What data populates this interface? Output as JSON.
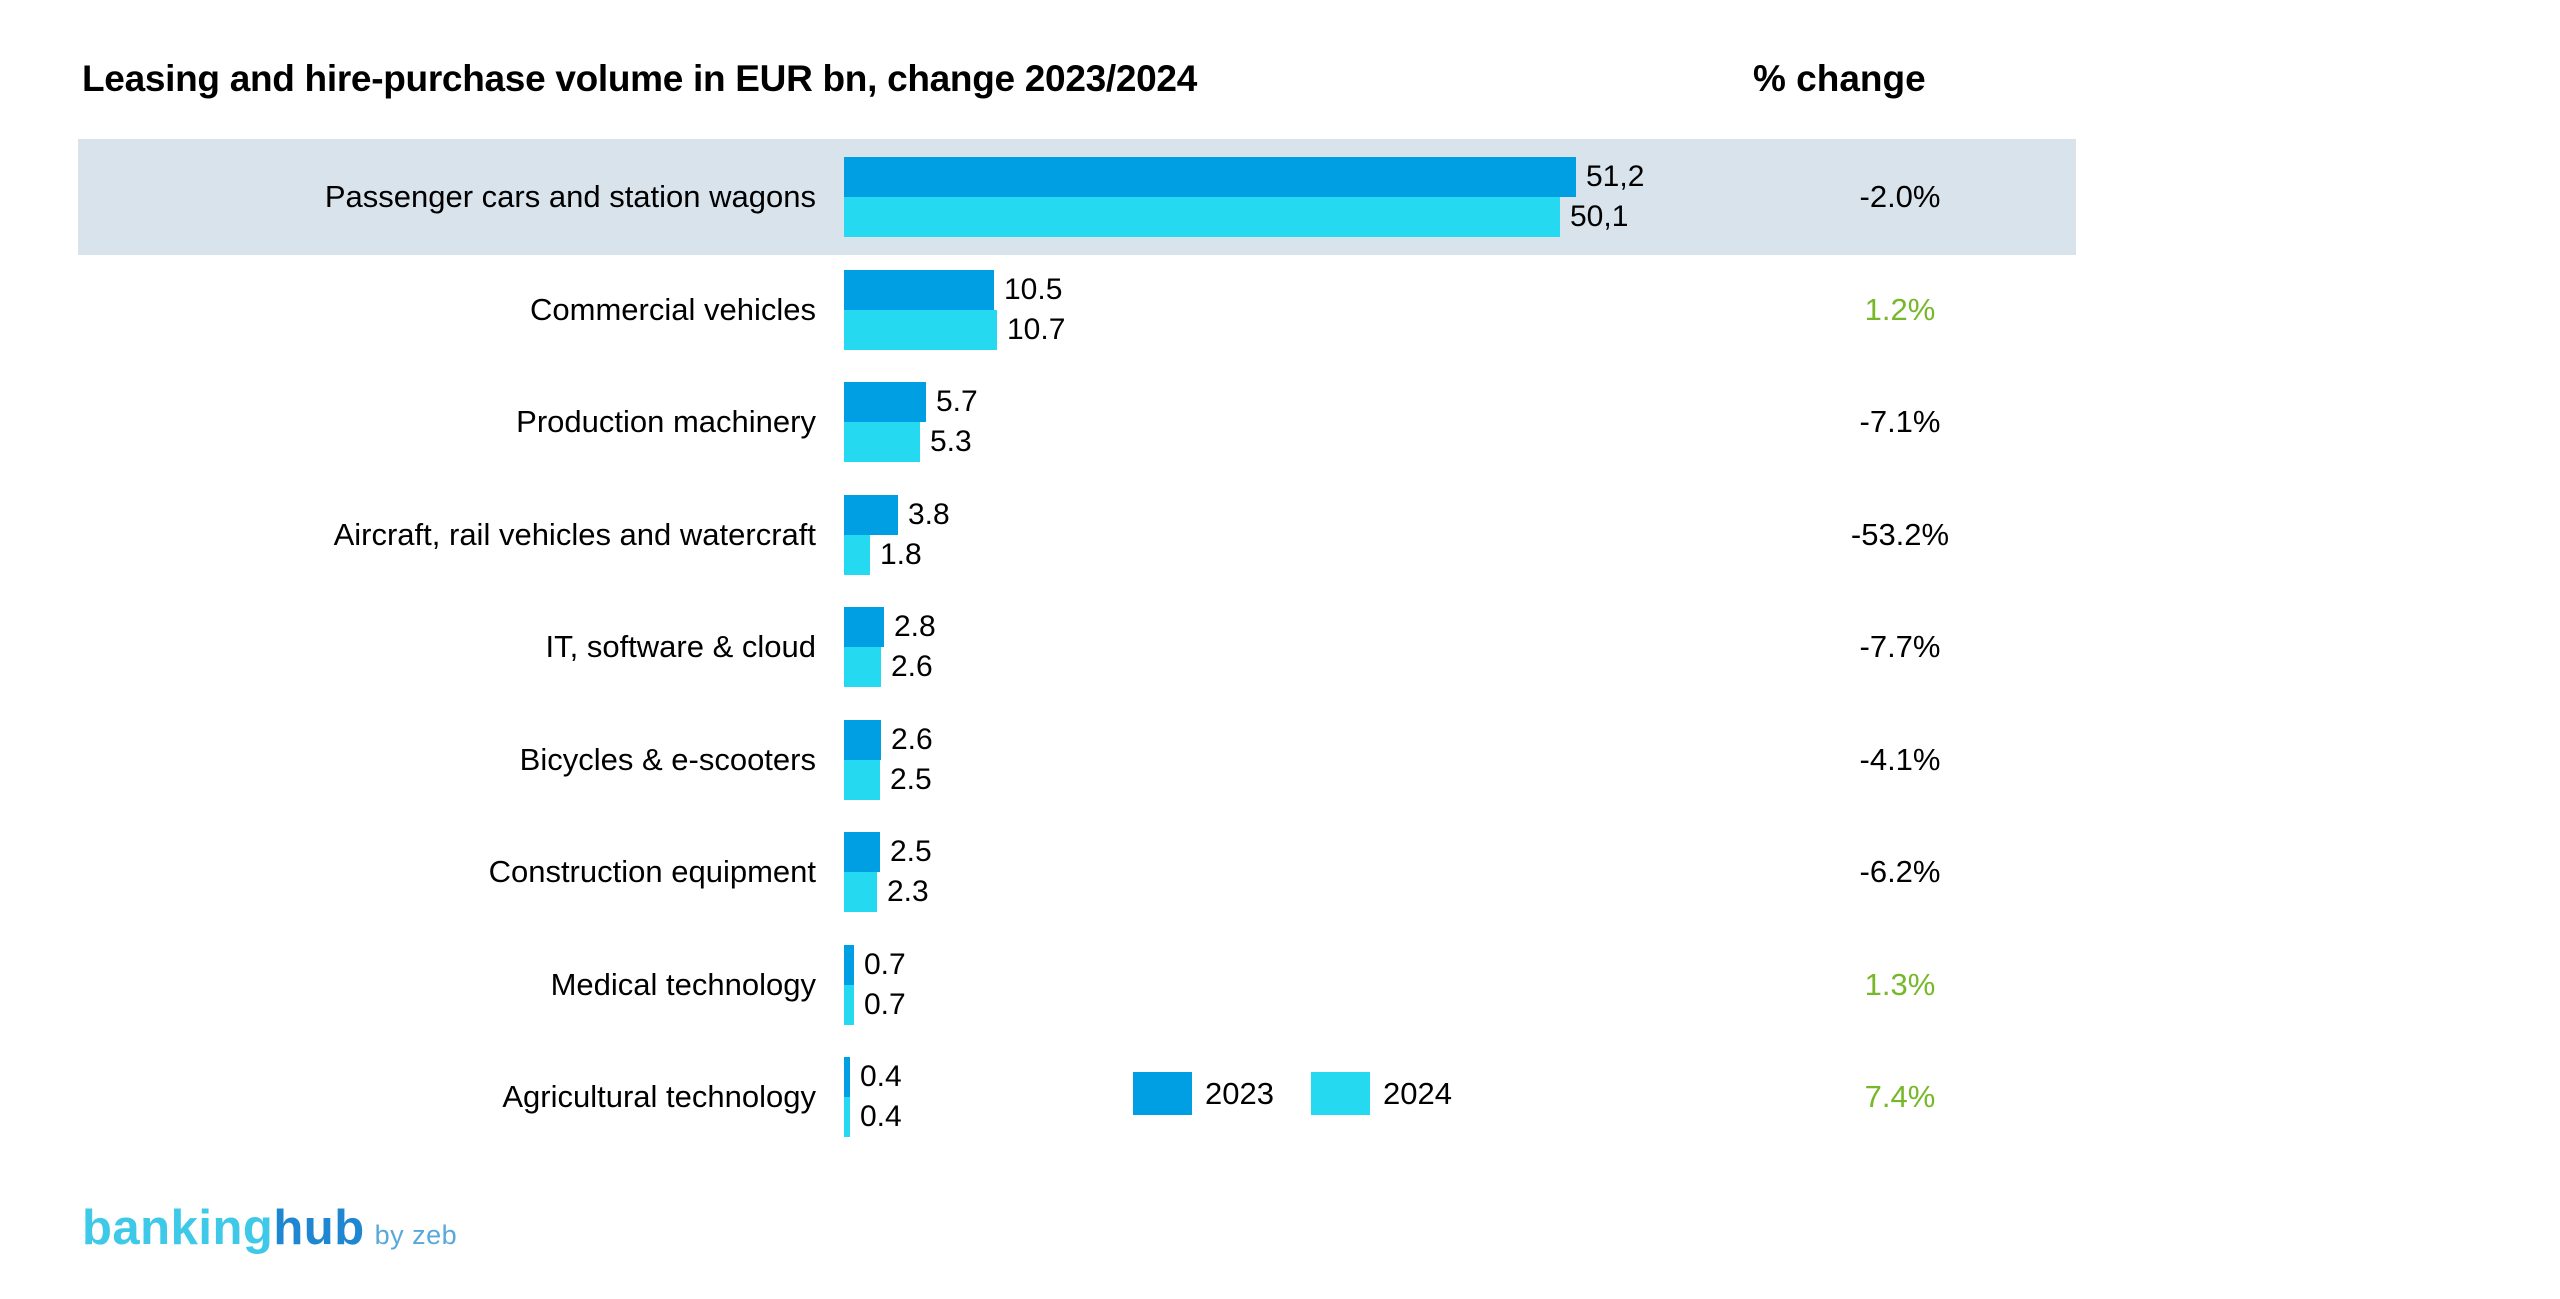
{
  "chart_data": {
    "type": "bar",
    "orientation": "horizontal",
    "title": "Leasing and hire-purchase volume in EUR bn, change 2023/2024",
    "unit": "EUR bn",
    "pct_change_header": "% change",
    "categories": [
      "Passenger cars and station wagons",
      "Commercial vehicles",
      "Production machinery",
      "Aircraft, rail vehicles and watercraft",
      "IT, software & cloud",
      "Bicycles & e-scooters",
      "Construction equipment",
      "Medical technology",
      "Agricultural technology"
    ],
    "series": [
      {
        "name": "2023",
        "color": "#009fe3",
        "values": [
          51.2,
          10.5,
          5.7,
          3.8,
          2.8,
          2.6,
          2.5,
          0.7,
          0.4
        ],
        "labels": [
          "51,2",
          "10.5",
          "5.7",
          "3.8",
          "2.8",
          "2.6",
          "2.5",
          "0.7",
          "0.4"
        ]
      },
      {
        "name": "2024",
        "color": "#25d9f0",
        "values": [
          50.1,
          10.7,
          5.3,
          1.8,
          2.6,
          2.5,
          2.3,
          0.7,
          0.4
        ],
        "labels": [
          "50,1",
          "10.7",
          "5.3",
          "1.8",
          "2.6",
          "2.5",
          "2.3",
          "0.7",
          "0.4"
        ]
      }
    ],
    "pct_change": [
      "-2.0%",
      "1.2%",
      "-7.1%",
      "-53.2%",
      "-7.7%",
      "-4.1%",
      "-6.2%",
      "1.3%",
      "7.4%"
    ],
    "pct_positive": [
      false,
      true,
      false,
      false,
      false,
      false,
      false,
      true,
      true
    ],
    "highlighted_row_index": 0,
    "xlim": [
      0,
      55
    ],
    "grid": false,
    "legend_position": "bottom-inline-right-of-last-bar"
  },
  "colors": {
    "bar_2023": "#009fe3",
    "bar_2024": "#25d9f0",
    "highlight_row_bg": "#d9e3eb",
    "positive_green": "#76b82a",
    "negative_black": "#000000",
    "logo_banking": "#3ec9e9",
    "logo_hub": "#1f87d2",
    "logo_byline": "#58a8db"
  },
  "logo": {
    "part1": "banking",
    "part2": "hub",
    "byline": "by zeb"
  }
}
